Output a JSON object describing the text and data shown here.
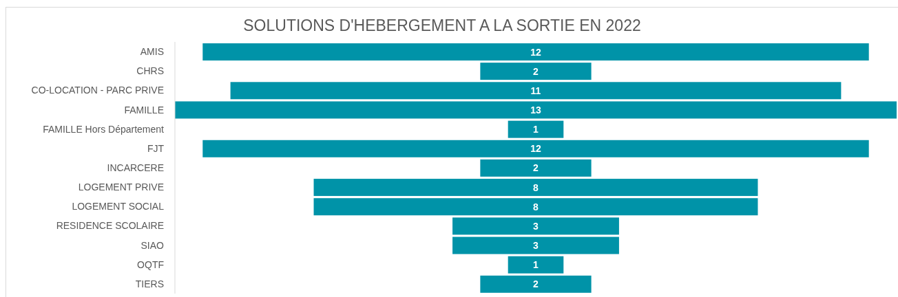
{
  "chart_data": {
    "type": "other",
    "title": "SOLUTIONS D'HEBERGEMENT A LA SORTIE EN 2022",
    "categories": [
      "AMIS",
      "CHRS",
      "CO-LOCATION - PARC PRIVE",
      "FAMILLE",
      "FAMILLE Hors Département",
      "FJT",
      "INCARCERE",
      "LOGEMENT PRIVE",
      "LOGEMENT SOCIAL",
      "RESIDENCE SCOLAIRE",
      "SIAO",
      "OQTF",
      "TIERS"
    ],
    "values": [
      12,
      2,
      11,
      13,
      1,
      12,
      2,
      8,
      8,
      3,
      3,
      1,
      2
    ],
    "color": "#0093a8",
    "data_labels": true
  }
}
